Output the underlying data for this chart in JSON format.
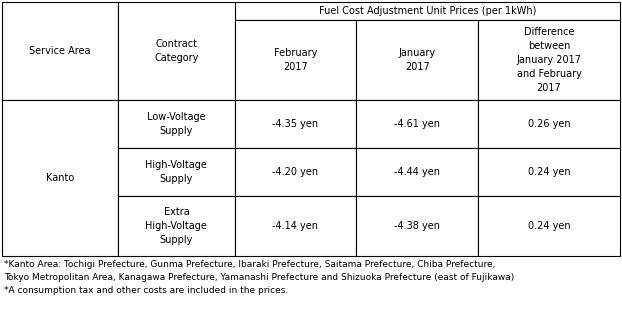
{
  "title": "Fuel Cost Adjustment Unit Prices (per 1kWh)",
  "col_headers_row0": [
    "Service Area",
    "Contract\nCategory",
    "Fuel Cost Adjustment Unit Prices (per 1kWh)"
  ],
  "col_headers_row1": [
    "February\n2017",
    "January\n2017",
    "Difference\nbetween\nJanuary 2017\nand February\n2017"
  ],
  "service_area": "Kanto",
  "rows": [
    [
      "Low-Voltage\nSupply",
      "-4.35 yen",
      "-4.61 yen",
      "0.26 yen"
    ],
    [
      "High-Voltage\nSupply",
      "-4.20 yen",
      "-4.44 yen",
      "0.24 yen"
    ],
    [
      "Extra\nHigh-Voltage\nSupply",
      "-4.14 yen",
      "-4.38 yen",
      "0.24 yen"
    ]
  ],
  "footnotes": [
    "*Kanto Area: Tochigi Prefecture, Gunma Prefecture, Ibaraki Prefecture, Saitama Prefecture, Chiba Prefecture,",
    "Tokyo Metropolitan Area, Kanagawa Prefecture, Yamanashi Prefecture and Shizuoka Prefecture (east of Fujikawa)",
    "*A consumption tax and other costs are included in the prices."
  ],
  "bg_color": "#ffffff",
  "border_color": "#000000",
  "text_color": "#000000",
  "font_size": 7.0,
  "footnote_font_size": 6.5
}
